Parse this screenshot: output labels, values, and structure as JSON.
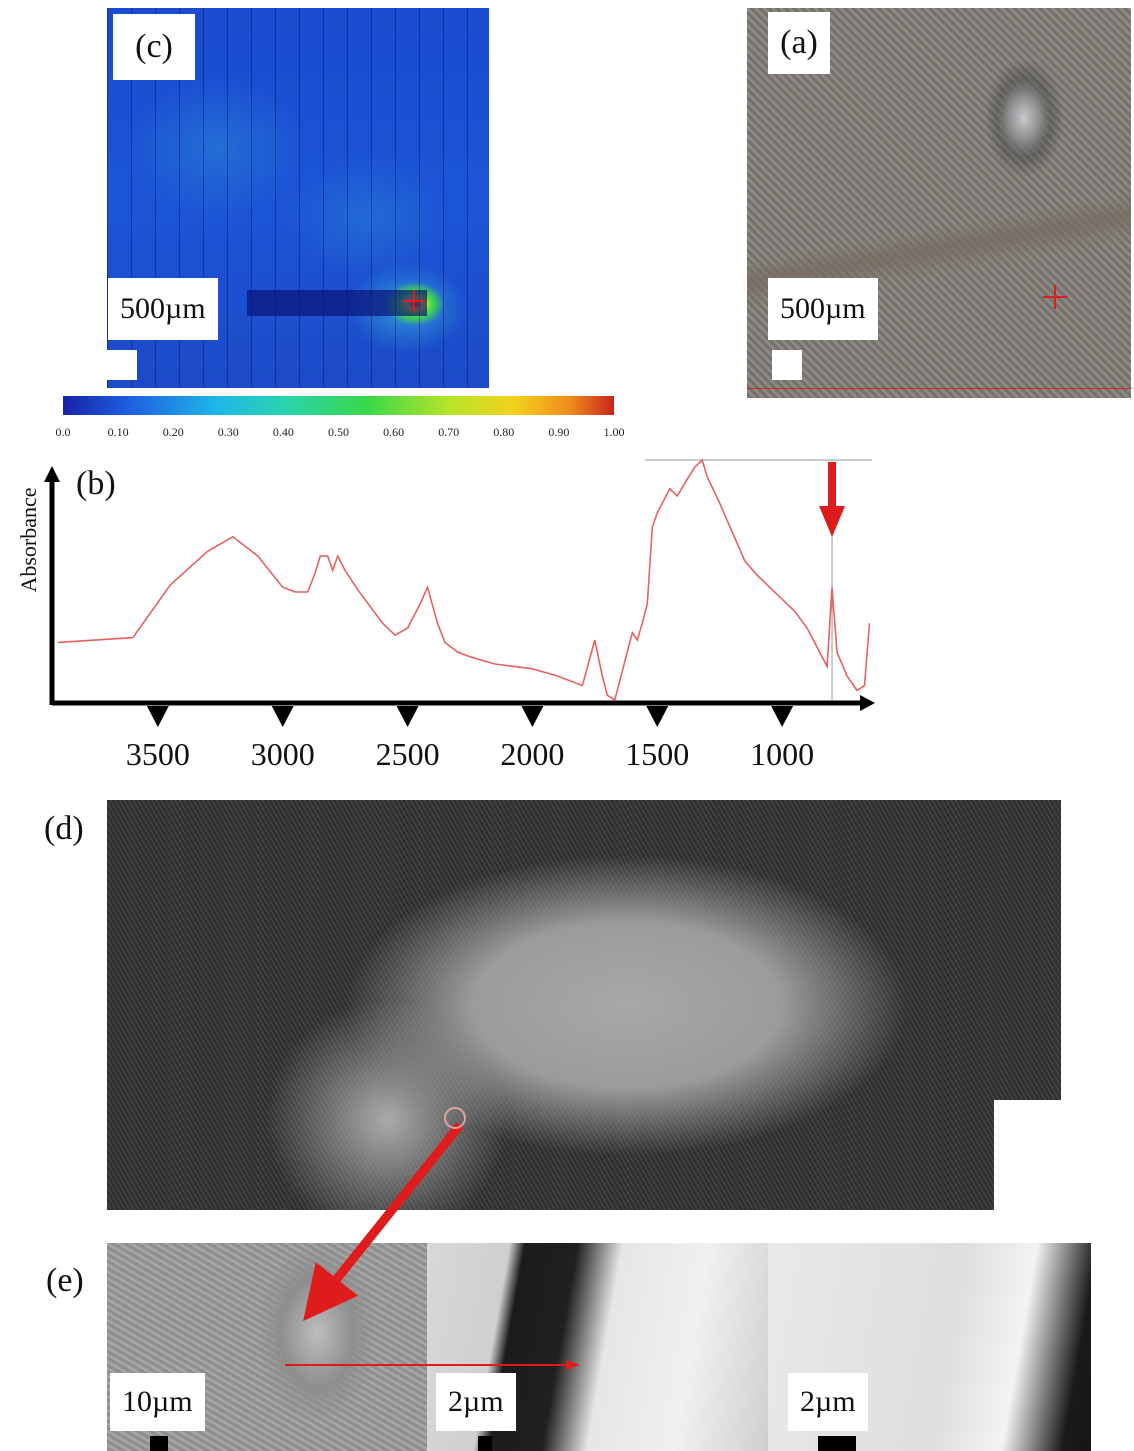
{
  "panels": {
    "c": {
      "label": "(c)",
      "scale": "500µm"
    },
    "a": {
      "label": "(a)",
      "scale": "500µm"
    },
    "b": {
      "label": "(b)"
    },
    "d": {
      "label": "(d)"
    },
    "e": {
      "label": "(e)",
      "scales": [
        "10µm",
        "2µm",
        "2µm"
      ]
    }
  },
  "colorbar": {
    "ticks": [
      "0.0",
      "0.10",
      "0.20",
      "0.30",
      "0.40",
      "0.50",
      "0.60",
      "0.70",
      "0.80",
      "0.90",
      "1.00"
    ],
    "colors": [
      "#1623a6",
      "#1f5fe0",
      "#1fb7e8",
      "#2ad3b0",
      "#38d84a",
      "#b6e42a",
      "#f2d21e",
      "#f08b1c",
      "#c9251c"
    ]
  },
  "chart_data": {
    "type": "line",
    "title": "",
    "xlabel": "",
    "ylabel": "Absorbance",
    "x_reversed": true,
    "xlim": [
      3900,
      640
    ],
    "ylim": [
      0,
      1
    ],
    "x_ticks": [
      "3500",
      "3000",
      "2500",
      "2000",
      "1500",
      "1000"
    ],
    "line_color": "#e86060",
    "marker_color": "#e01b1b",
    "marker_x": 800,
    "series": [
      {
        "x": [
          3900,
          3600,
          3450,
          3300,
          3200,
          3100,
          3000,
          2950,
          2900,
          2870,
          2850,
          2820,
          2800,
          2780,
          2750,
          2700,
          2600,
          2550,
          2500,
          2450,
          2420,
          2380,
          2350,
          2300,
          2250,
          2150,
          2000,
          1900,
          1800,
          1750,
          1720,
          1700,
          1670,
          1640,
          1620,
          1600,
          1580,
          1560,
          1540,
          1520,
          1500,
          1480,
          1450,
          1420,
          1380,
          1350,
          1320,
          1300,
          1250,
          1200,
          1150,
          1100,
          1050,
          1000,
          950,
          900,
          860,
          820,
          800,
          780,
          740,
          700,
          670,
          650
        ],
        "y": [
          0.24,
          0.26,
          0.48,
          0.62,
          0.68,
          0.6,
          0.47,
          0.45,
          0.45,
          0.53,
          0.6,
          0.6,
          0.54,
          0.6,
          0.54,
          0.46,
          0.32,
          0.27,
          0.3,
          0.4,
          0.47,
          0.32,
          0.24,
          0.2,
          0.18,
          0.15,
          0.13,
          0.1,
          0.06,
          0.25,
          0.1,
          0.02,
          0.0,
          0.12,
          0.2,
          0.28,
          0.25,
          0.32,
          0.4,
          0.72,
          0.78,
          0.82,
          0.88,
          0.85,
          0.92,
          0.97,
          1.0,
          0.93,
          0.82,
          0.7,
          0.58,
          0.52,
          0.47,
          0.42,
          0.37,
          0.3,
          0.22,
          0.14,
          0.47,
          0.2,
          0.1,
          0.04,
          0.06,
          0.32
        ]
      }
    ]
  }
}
